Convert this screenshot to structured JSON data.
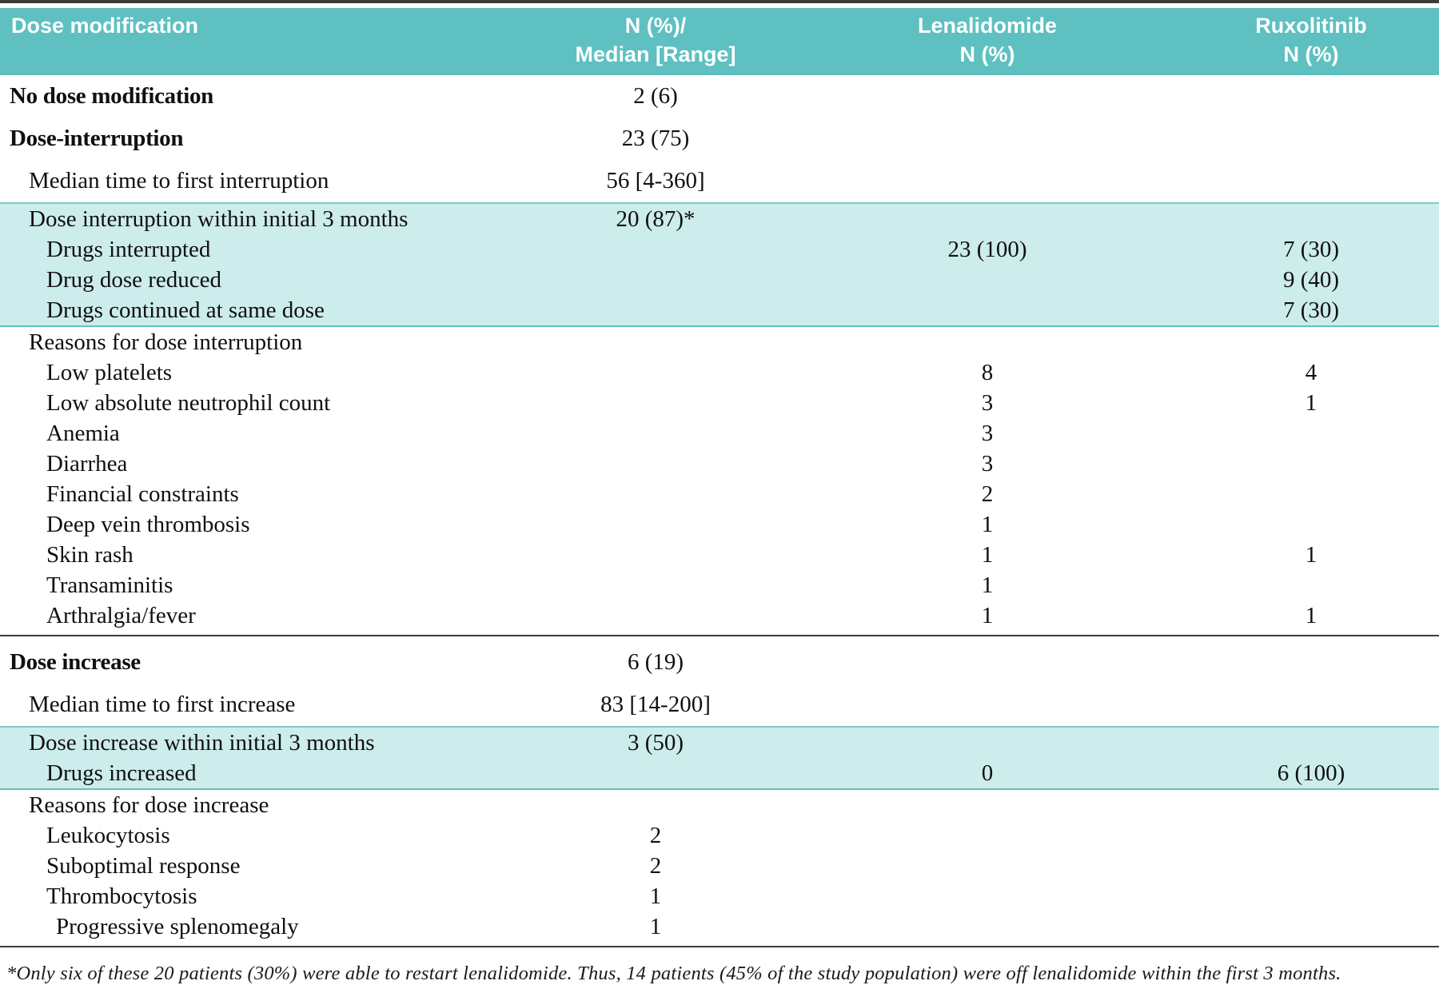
{
  "colors": {
    "header_teal": "#5ec0c1",
    "band_teal": "#cdecec",
    "band_border": "#7fc9ca",
    "rule_dark": "#3a3a3a",
    "text": "#101010"
  },
  "table": {
    "header": {
      "col1": "Dose modification",
      "col2": [
        "N (%)/",
        "Median [Range]"
      ],
      "col3": [
        "Lenalidomide",
        "N (%)"
      ],
      "col4": [
        "Ruxolitinib",
        "N (%)"
      ]
    },
    "rows": [
      {
        "label": "No dose modification",
        "median": "2 (6)",
        "indent": 0,
        "tall": true
      },
      {
        "label": "Dose-interruption",
        "median": "23 (75)",
        "indent": 0,
        "tall": true
      },
      {
        "label": "Median time to first interruption",
        "median": "56 [4-360]",
        "indent": 1,
        "tall": true
      },
      {
        "label": "Dose interruption within initial 3 months",
        "median": "20 (87)*",
        "indent": 1,
        "shaded": true
      },
      {
        "label": "Drugs interrupted",
        "len": "23 (100)",
        "rux": "7 (30)",
        "indent": 2,
        "shaded": true
      },
      {
        "label": "Drug dose reduced",
        "rux": "9 (40)",
        "indent": 2,
        "shaded": true
      },
      {
        "label": "Drugs continued at same dose",
        "rux": "7 (30)",
        "indent": 2,
        "shaded": true
      },
      {
        "label": "Reasons for dose interruption",
        "indent": 1
      },
      {
        "label": "Low platelets",
        "len": "8",
        "rux": "4",
        "indent": 2
      },
      {
        "label": "Low absolute neutrophil count",
        "len": "3",
        "rux": "1",
        "indent": 2
      },
      {
        "label": "Anemia",
        "len": "3",
        "indent": 2
      },
      {
        "label": "Diarrhea",
        "len": "3",
        "indent": 2
      },
      {
        "label": "Financial constraints",
        "len": "2",
        "indent": 2
      },
      {
        "label": "Deep vein thrombosis",
        "len": "1",
        "indent": 2
      },
      {
        "label": "Skin rash",
        "len": "1",
        "rux": "1",
        "indent": 2
      },
      {
        "label": "Transaminitis",
        "len": "1",
        "indent": 2
      },
      {
        "label": "Arthralgia/fever",
        "len": "1",
        "rux": "1",
        "indent": 2,
        "divider_after": true
      },
      {
        "label": "Dose increase",
        "median": "6 (19)",
        "indent": 0,
        "tall": true
      },
      {
        "label": "Median time to first increase",
        "median": "83 [14-200]",
        "indent": 1,
        "tall": true
      },
      {
        "label": "Dose increase within initial 3 months",
        "median": "3 (50)",
        "indent": 1,
        "shaded": true
      },
      {
        "label": "Drugs increased",
        "len": "0",
        "rux": "6 (100)",
        "indent": 2,
        "shaded": true
      },
      {
        "label": "Reasons for dose increase",
        "indent": 1
      },
      {
        "label": "Leukocytosis",
        "median": "2",
        "indent": 2
      },
      {
        "label": "Suboptimal response",
        "median": "2",
        "indent": 2
      },
      {
        "label": "Thrombocytosis",
        "median": "1",
        "indent": 2
      },
      {
        "label": "Progressive splenomegaly",
        "median": "1",
        "indent": 3,
        "divider_after": true
      }
    ]
  },
  "footnote": "*Only six of these 20 patients (30%) were able to restart lenalidomide. Thus, 14 patients (45% of the study population) were off lenalidomide within the first 3 months."
}
